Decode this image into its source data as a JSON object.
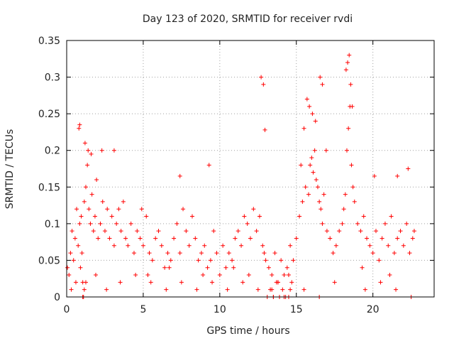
{
  "chart_data": {
    "type": "scatter",
    "title": "Day 123 of 2020, SRMTID for receiver rvdi",
    "xlabel": "GPS time / hours",
    "ylabel": "SRMTID / TECUs",
    "xlim": [
      0,
      24
    ],
    "ylim": [
      0,
      0.35
    ],
    "xticks": [
      0,
      5,
      10,
      15,
      20
    ],
    "yticks": [
      0,
      0.05,
      0.1,
      0.15,
      0.2,
      0.25,
      0.3,
      0.35
    ],
    "xtick_labels": [
      "0",
      "5",
      "10",
      "15",
      "20"
    ],
    "ytick_labels": [
      "0",
      "0.05",
      "0.1",
      "0.15",
      "0.2",
      "0.25",
      "0.3",
      "0.35"
    ],
    "grid": true,
    "marker": "plus",
    "series": [
      {
        "name": "SRMTID",
        "color": "#ff0000",
        "x": [
          0.05,
          0.15,
          0.25,
          0.35,
          0.45,
          0.55,
          0.65,
          0.75,
          0.85,
          0.95,
          1.0,
          1.05,
          1.15,
          1.25,
          1.35,
          1.45,
          1.55,
          1.65,
          1.75,
          1.85,
          1.95,
          2.05,
          2.2,
          2.35,
          2.5,
          2.65,
          2.8,
          2.95,
          3.1,
          3.25,
          3.4,
          3.55,
          3.7,
          3.85,
          4.0,
          4.2,
          4.4,
          4.6,
          4.8,
          5.0,
          5.2,
          5.4,
          5.6,
          5.8,
          6.0,
          6.2,
          6.4,
          6.6,
          6.8,
          7.0,
          7.2,
          7.4,
          7.6,
          7.8,
          8.0,
          8.2,
          8.4,
          8.6,
          8.8,
          9.0,
          9.2,
          9.4,
          9.6,
          9.8,
          10.0,
          10.2,
          10.4,
          10.6,
          10.8,
          11.0,
          11.2,
          11.4,
          11.6,
          11.8,
          12.0,
          12.2,
          12.4,
          12.6,
          12.8,
          12.9,
          13.0,
          13.2,
          13.4,
          13.6,
          13.8,
          14.0,
          14.2,
          14.4,
          14.6,
          14.8,
          15.0,
          15.2,
          15.4,
          15.6,
          15.8,
          15.9,
          16.0,
          16.1,
          16.2,
          16.3,
          16.4,
          16.5,
          16.6,
          16.7,
          16.8,
          17.0,
          17.2,
          17.4,
          17.6,
          17.8,
          18.0,
          18.1,
          18.2,
          18.3,
          18.4,
          18.5,
          18.6,
          18.7,
          18.8,
          19.0,
          19.2,
          19.4,
          19.6,
          19.8,
          20.0,
          20.2,
          20.4,
          20.6,
          20.8,
          21.0,
          21.2,
          21.4,
          21.6,
          21.8,
          22.0,
          22.2,
          22.4,
          22.6,
          22.7,
          0.8,
          0.85,
          1.2,
          1.4,
          1.6,
          2.3,
          3.1,
          4.9,
          7.4,
          9.3,
          12.7,
          12.85,
          12.95,
          15.3,
          15.5,
          15.7,
          15.85,
          16.05,
          16.25,
          16.55,
          16.7,
          16.95,
          18.25,
          18.35,
          18.45,
          18.55,
          18.65,
          20.1,
          21.6,
          22.3,
          0.3,
          0.6,
          1.1,
          1.9,
          2.6,
          3.5,
          4.5,
          5.5,
          6.5,
          7.5,
          8.5,
          9.5,
          10.5,
          11.5,
          12.5,
          13.5,
          14.5,
          15.5,
          16.5,
          17.5,
          19.5,
          20.5,
          21.5,
          22.5,
          13.1,
          13.3,
          13.5,
          13.7,
          13.9,
          14.1,
          14.3,
          14.5,
          14.7,
          13.4,
          13.8,
          14.2,
          14.6,
          1.05,
          1.15,
          1.25,
          0.9,
          5.3,
          6.7,
          8.9,
          10.9,
          11.9,
          19.3,
          21.1
        ],
        "y": [
          0.04,
          0.03,
          0.06,
          0.09,
          0.05,
          0.08,
          0.12,
          0.07,
          0.1,
          0.11,
          0.06,
          0.02,
          0.13,
          0.15,
          0.18,
          0.12,
          0.1,
          0.14,
          0.09,
          0.11,
          0.16,
          0.08,
          0.1,
          0.13,
          0.09,
          0.12,
          0.08,
          0.11,
          0.07,
          0.1,
          0.12,
          0.09,
          0.13,
          0.08,
          0.07,
          0.1,
          0.06,
          0.09,
          0.08,
          0.07,
          0.11,
          0.06,
          0.05,
          0.08,
          0.09,
          0.07,
          0.04,
          0.06,
          0.05,
          0.08,
          0.1,
          0.06,
          0.12,
          0.09,
          0.07,
          0.11,
          0.08,
          0.05,
          0.06,
          0.07,
          0.04,
          0.05,
          0.09,
          0.06,
          0.03,
          0.07,
          0.04,
          0.06,
          0.05,
          0.08,
          0.09,
          0.07,
          0.11,
          0.1,
          0.08,
          0.12,
          0.09,
          0.11,
          0.07,
          0.06,
          0.05,
          0.04,
          0.03,
          0.06,
          0.02,
          0.05,
          0.03,
          0.04,
          0.07,
          0.05,
          0.08,
          0.11,
          0.13,
          0.15,
          0.14,
          0.18,
          0.19,
          0.17,
          0.2,
          0.16,
          0.15,
          0.13,
          0.12,
          0.1,
          0.14,
          0.09,
          0.08,
          0.06,
          0.07,
          0.09,
          0.1,
          0.12,
          0.14,
          0.2,
          0.23,
          0.26,
          0.18,
          0.15,
          0.13,
          0.1,
          0.09,
          0.11,
          0.08,
          0.07,
          0.06,
          0.09,
          0.05,
          0.08,
          0.1,
          0.07,
          0.11,
          0.06,
          0.08,
          0.09,
          0.07,
          0.1,
          0.06,
          0.08,
          0.09,
          0.23,
          0.235,
          0.21,
          0.2,
          0.195,
          0.2,
          0.2,
          0.12,
          0.165,
          0.18,
          0.3,
          0.29,
          0.228,
          0.18,
          0.23,
          0.27,
          0.26,
          0.25,
          0.24,
          0.3,
          0.29,
          0.2,
          0.31,
          0.32,
          0.33,
          0.29,
          0.26,
          0.165,
          0.165,
          0.175,
          0.01,
          0.02,
          0.0,
          0.03,
          0.01,
          0.02,
          0.03,
          0.02,
          0.01,
          0.02,
          0.01,
          0.02,
          0.01,
          0.02,
          0.01,
          0.0,
          0.0,
          0.01,
          0.0,
          0.02,
          0.01,
          0.02,
          0.01,
          0.0,
          0.0,
          0.01,
          0.0,
          0.02,
          0.0,
          0.01,
          0.0,
          0.03,
          0.02,
          0.01,
          0.02,
          0.0,
          0.01,
          0.0,
          0.01,
          0.02,
          0.04,
          0.03,
          0.04,
          0.03,
          0.04,
          0.03,
          0.04,
          0.03
        ]
      }
    ]
  }
}
